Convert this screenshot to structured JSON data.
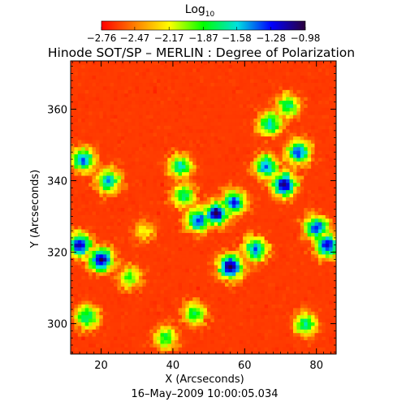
{
  "chart_data": {
    "type": "heatmap",
    "title": "Hinode SOT/SP – MERLIN : Degree of Polarization",
    "colorbar": {
      "label_base": "Log",
      "label_sub": "10",
      "ticks": [
        "−2.76",
        "−2.47",
        "−2.17",
        "−1.87",
        "−1.58",
        "−1.28",
        "−0.98"
      ],
      "range": [
        -2.76,
        -0.98
      ],
      "colors": [
        "#ff0000",
        "#ff8000",
        "#ffff00",
        "#00ff00",
        "#00e0e0",
        "#0000ff",
        "#2a003a"
      ]
    },
    "xlabel": "X (Arcseconds)",
    "ylabel": "Y (Arcseconds)",
    "xlim": [
      11.5,
      85.5
    ],
    "ylim": [
      291.5,
      373.5
    ],
    "xticks": [
      "20",
      "40",
      "60",
      "80"
    ],
    "yticks": [
      "300",
      "320",
      "340",
      "360"
    ],
    "timestamp": "16–May–2009 10:00:05.034",
    "field": {
      "grid": [
        74,
        82
      ],
      "background_log10": -2.72,
      "features": [
        {
          "x": 20,
          "y": 318,
          "log10": -1.05
        },
        {
          "x": 14,
          "y": 322,
          "log10": -1.15
        },
        {
          "x": 22,
          "y": 340,
          "log10": -1.5
        },
        {
          "x": 15,
          "y": 346,
          "log10": -1.4
        },
        {
          "x": 28,
          "y": 313,
          "log10": -1.9
        },
        {
          "x": 32,
          "y": 326,
          "log10": -2.2
        },
        {
          "x": 43,
          "y": 336,
          "log10": -1.7
        },
        {
          "x": 47,
          "y": 329,
          "log10": -1.3
        },
        {
          "x": 52,
          "y": 331,
          "log10": -1.05
        },
        {
          "x": 57,
          "y": 334,
          "log10": -1.3
        },
        {
          "x": 56,
          "y": 316,
          "log10": -1.0
        },
        {
          "x": 63,
          "y": 321,
          "log10": -1.4
        },
        {
          "x": 66,
          "y": 344,
          "log10": -1.4
        },
        {
          "x": 71,
          "y": 339,
          "log10": -1.0
        },
        {
          "x": 75,
          "y": 348,
          "log10": -1.35
        },
        {
          "x": 80,
          "y": 327,
          "log10": -1.3
        },
        {
          "x": 83,
          "y": 322,
          "log10": -1.2
        },
        {
          "x": 67,
          "y": 356,
          "log10": -1.6
        },
        {
          "x": 72,
          "y": 361,
          "log10": -1.7
        },
        {
          "x": 77,
          "y": 300,
          "log10": -1.7
        },
        {
          "x": 46,
          "y": 303,
          "log10": -1.8
        },
        {
          "x": 16,
          "y": 302,
          "log10": -1.7
        },
        {
          "x": 38,
          "y": 296,
          "log10": -1.8
        },
        {
          "x": 42,
          "y": 344,
          "log10": -1.6
        }
      ]
    }
  }
}
